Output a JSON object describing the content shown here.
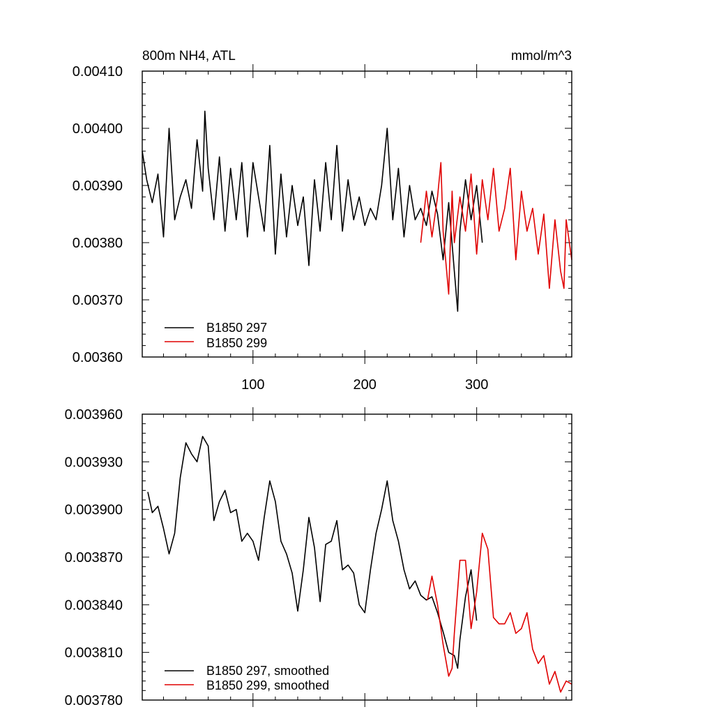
{
  "chart_data": [
    {
      "type": "line",
      "title_left": "800m NH4, ATL",
      "title_right": "mmol/m^3",
      "xlim": [
        1,
        385
      ],
      "ylim": [
        0.0036,
        0.0041
      ],
      "x_ticks": [
        100,
        200,
        300
      ],
      "x_tick_labels": [
        "100",
        "200",
        "300"
      ],
      "y_ticks": [
        0.0036,
        0.0037,
        0.0038,
        0.0039,
        0.004,
        0.0041
      ],
      "y_tick_labels": [
        "0.00360",
        "0.00370",
        "0.00380",
        "0.00390",
        "0.00400",
        "0.00410"
      ],
      "legend_position": "bottom-left",
      "series": [
        {
          "name": "B1850 297",
          "color": "#000000",
          "x": [
            1,
            5,
            10,
            15,
            20,
            25,
            30,
            35,
            40,
            45,
            50,
            55,
            57,
            60,
            65,
            70,
            75,
            80,
            85,
            90,
            95,
            100,
            105,
            110,
            115,
            120,
            125,
            130,
            135,
            140,
            145,
            150,
            155,
            160,
            165,
            170,
            175,
            180,
            185,
            190,
            195,
            200,
            205,
            210,
            215,
            220,
            225,
            230,
            235,
            240,
            245,
            250,
            255,
            260,
            265,
            270,
            275,
            280,
            283,
            285,
            290,
            295,
            300,
            305
          ],
          "values": [
            0.00396,
            0.00391,
            0.00387,
            0.00392,
            0.00381,
            0.004,
            0.00384,
            0.00388,
            0.00391,
            0.00386,
            0.00398,
            0.00389,
            0.00403,
            0.00393,
            0.00384,
            0.00395,
            0.00382,
            0.00393,
            0.00384,
            0.00394,
            0.00381,
            0.00394,
            0.00388,
            0.00382,
            0.00397,
            0.00378,
            0.00392,
            0.00381,
            0.0039,
            0.00383,
            0.00388,
            0.00376,
            0.00391,
            0.00382,
            0.00394,
            0.00384,
            0.00397,
            0.00382,
            0.00391,
            0.00384,
            0.00388,
            0.00383,
            0.00386,
            0.00384,
            0.0039,
            0.004,
            0.00384,
            0.00393,
            0.00381,
            0.0039,
            0.00384,
            0.00386,
            0.00383,
            0.00389,
            0.00385,
            0.00377,
            0.00387,
            0.00375,
            0.00368,
            0.00382,
            0.00391,
            0.00384,
            0.0039,
            0.0038
          ]
        },
        {
          "name": "B1850 299",
          "color": "#e00000",
          "x": [
            250,
            255,
            260,
            265,
            268,
            270,
            275,
            278,
            280,
            285,
            290,
            295,
            300,
            305,
            310,
            315,
            320,
            325,
            330,
            335,
            340,
            345,
            350,
            355,
            360,
            365,
            370,
            375,
            378,
            380,
            385
          ],
          "values": [
            0.0038,
            0.00389,
            0.00381,
            0.00388,
            0.00394,
            0.00382,
            0.00371,
            0.00389,
            0.0038,
            0.00388,
            0.00382,
            0.00392,
            0.00378,
            0.00391,
            0.00384,
            0.00393,
            0.00382,
            0.00386,
            0.00393,
            0.00377,
            0.00389,
            0.00382,
            0.00386,
            0.00378,
            0.00385,
            0.00372,
            0.00384,
            0.00375,
            0.00372,
            0.00384,
            0.00377
          ]
        }
      ]
    },
    {
      "type": "line",
      "xlim": [
        1,
        385
      ],
      "ylim": [
        0.00378,
        0.00396
      ],
      "y_ticks": [
        0.00378,
        0.00381,
        0.00384,
        0.00387,
        0.0039,
        0.00393,
        0.00396
      ],
      "y_tick_labels": [
        "0.003780",
        "0.003810",
        "0.003840",
        "0.003870",
        "0.003900",
        "0.003930",
        "0.003960"
      ],
      "legend_position": "bottom-left",
      "series": [
        {
          "name": "B1850 297, smoothed",
          "color": "#000000",
          "x": [
            6,
            10,
            15,
            20,
            25,
            30,
            35,
            40,
            45,
            50,
            55,
            60,
            65,
            70,
            75,
            80,
            85,
            90,
            95,
            100,
            105,
            110,
            115,
            120,
            125,
            130,
            135,
            140,
            145,
            150,
            155,
            160,
            165,
            170,
            175,
            180,
            185,
            190,
            195,
            200,
            205,
            210,
            215,
            220,
            225,
            230,
            235,
            240,
            245,
            250,
            255,
            260,
            265,
            270,
            275,
            280,
            283,
            285,
            290,
            295,
            300
          ],
          "values": [
            0.003911,
            0.003898,
            0.003902,
            0.003888,
            0.003872,
            0.003885,
            0.00392,
            0.003942,
            0.003935,
            0.00393,
            0.003946,
            0.00394,
            0.003893,
            0.003905,
            0.003912,
            0.003898,
            0.0039,
            0.00388,
            0.003885,
            0.00388,
            0.003868,
            0.003895,
            0.003918,
            0.003905,
            0.00388,
            0.003872,
            0.00386,
            0.003836,
            0.003862,
            0.003895,
            0.003876,
            0.003842,
            0.003878,
            0.00388,
            0.003893,
            0.003862,
            0.003865,
            0.00386,
            0.00384,
            0.003835,
            0.003862,
            0.003885,
            0.0039,
            0.003918,
            0.003893,
            0.00388,
            0.003862,
            0.00385,
            0.003855,
            0.003846,
            0.003843,
            0.003845,
            0.003835,
            0.003823,
            0.00381,
            0.003808,
            0.0038,
            0.003818,
            0.003845,
            0.003862,
            0.00383
          ]
        },
        {
          "name": "B1850 299, smoothed",
          "color": "#e00000",
          "x": [
            256,
            260,
            265,
            270,
            275,
            278,
            280,
            285,
            290,
            295,
            300,
            305,
            310,
            315,
            320,
            325,
            330,
            335,
            340,
            345,
            350,
            355,
            360,
            365,
            370,
            375,
            380,
            385
          ],
          "values": [
            0.003843,
            0.003858,
            0.00384,
            0.003815,
            0.003795,
            0.0038,
            0.003822,
            0.003868,
            0.003868,
            0.003825,
            0.003848,
            0.003885,
            0.003875,
            0.003832,
            0.003828,
            0.003828,
            0.003835,
            0.003822,
            0.003825,
            0.003835,
            0.003812,
            0.003803,
            0.003808,
            0.00379,
            0.003798,
            0.003785,
            0.003792,
            0.00379
          ]
        }
      ]
    }
  ]
}
